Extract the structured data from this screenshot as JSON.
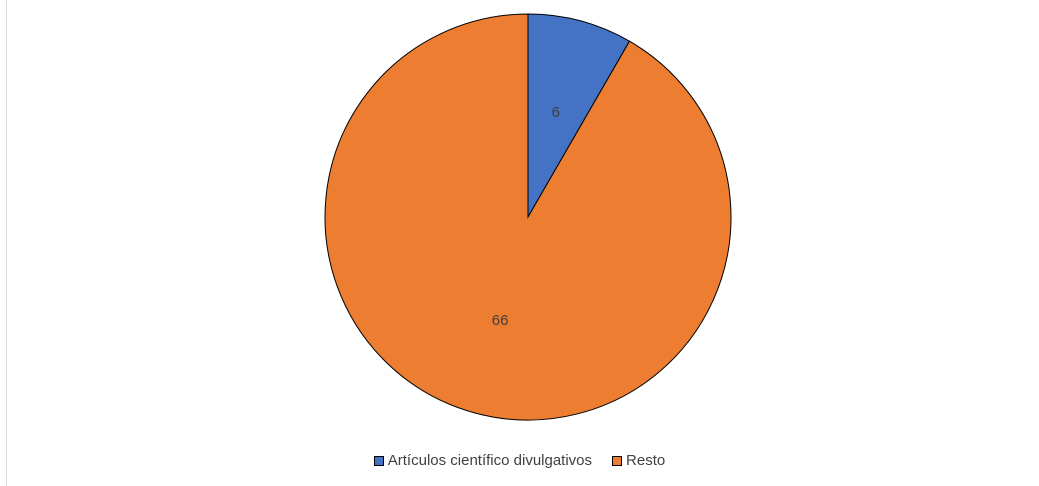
{
  "chart_data": {
    "type": "pie",
    "title": "",
    "slices": [
      {
        "name": "Artículos científico divulgativos",
        "value": 6,
        "label": "6",
        "color": "#4472C4"
      },
      {
        "name": "Resto",
        "value": 66,
        "label": "66",
        "color": "#ED7D31"
      }
    ],
    "start_angle_deg": 0,
    "direction": "clockwise",
    "legend": {
      "placement": "bottom"
    }
  }
}
